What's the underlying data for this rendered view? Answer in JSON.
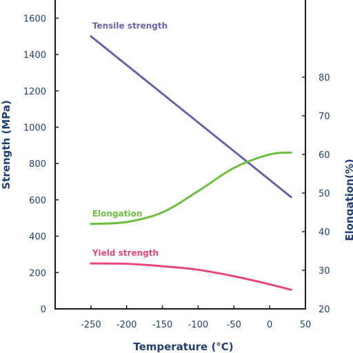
{
  "colors": {
    "axis": "#1a1a1a",
    "text": "#1f3f73",
    "tensile": "#6164ad",
    "elongation": "#6abf3f",
    "yield": "#e6457e"
  },
  "chart_data": {
    "type": "line",
    "xlabel": "Temperature (°C)",
    "ylabel": "Strength (MPa)",
    "y2label": "Elongation(%)",
    "xlim": [
      -300,
      50
    ],
    "ylim": [
      0,
      1700
    ],
    "y2lim": [
      20,
      100
    ],
    "x_ticks": [
      -250,
      -200,
      -150,
      -100,
      -50,
      0,
      50
    ],
    "x_tick_labels": [
      "-250",
      "-200",
      "-150",
      "-100",
      "-50",
      "0",
      "50"
    ],
    "y_ticks": [
      0,
      200,
      400,
      600,
      800,
      1000,
      1200,
      1400,
      1600
    ],
    "y_tick_labels": [
      "0",
      "200",
      "400",
      "600",
      "800",
      "1000",
      "1200",
      "1400",
      "1600"
    ],
    "y2_ticks": [
      20,
      30,
      40,
      50,
      60,
      70,
      80
    ],
    "y2_tick_labels": [
      "20",
      "30",
      "40",
      "50",
      "60",
      "70",
      "80"
    ],
    "grid": false,
    "series": [
      {
        "name": "Tensile strength",
        "axis": "left",
        "x": [
          -250,
          30
        ],
        "y": [
          1500,
          615
        ]
      },
      {
        "name": "Elongation",
        "axis": "right",
        "x": [
          -250,
          -200,
          -150,
          -100,
          -50,
          0,
          30
        ],
        "y": [
          42,
          42.5,
          45,
          50.5,
          56.5,
          60,
          60.5
        ]
      },
      {
        "name": "Yield strength",
        "axis": "left",
        "x": [
          -250,
          -200,
          -150,
          -100,
          -50,
          0,
          30
        ],
        "y": [
          250,
          248,
          235,
          215,
          180,
          135,
          105
        ]
      }
    ]
  }
}
